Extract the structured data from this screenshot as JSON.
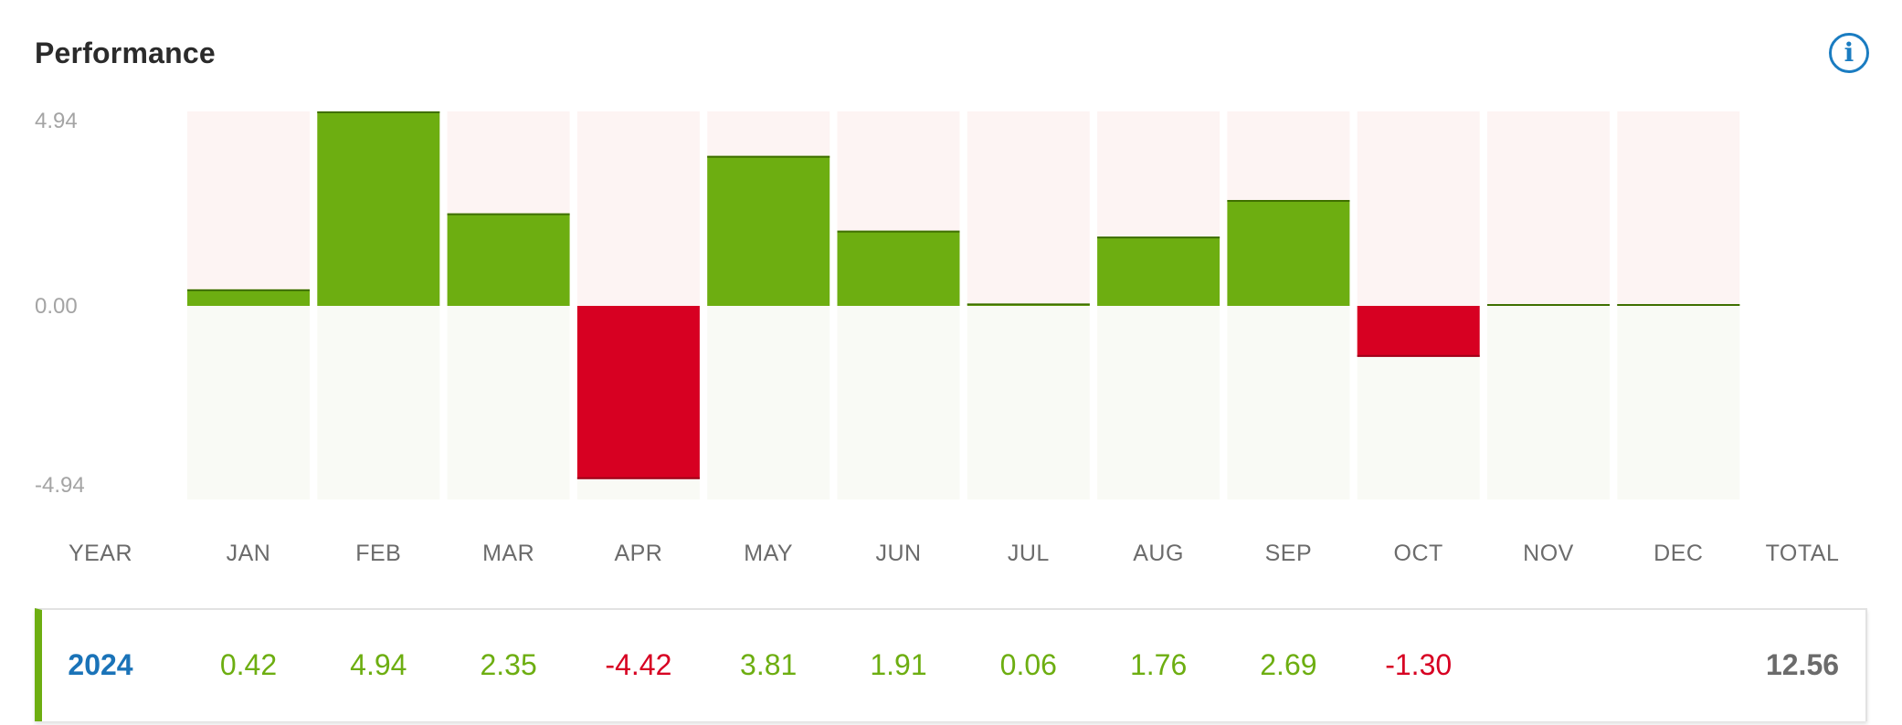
{
  "title": "Performance",
  "info_icon": "info-icon",
  "colors": {
    "positive": "#6dae11",
    "negative": "#d70022",
    "year_link": "#1a73b8",
    "upper_band": "#fdf4f3",
    "lower_band": "#f9faf5"
  },
  "chart_data": {
    "type": "bar",
    "categories": [
      "JAN",
      "FEB",
      "MAR",
      "APR",
      "MAY",
      "JUN",
      "JUL",
      "AUG",
      "SEP",
      "OCT",
      "NOV",
      "DEC"
    ],
    "values": [
      0.42,
      4.94,
      2.35,
      -4.42,
      3.81,
      1.91,
      0.06,
      1.76,
      2.69,
      -1.3,
      0,
      0
    ],
    "ylim": [
      -4.94,
      4.94
    ],
    "yticks": [
      "4.94",
      "0.00",
      "-4.94"
    ],
    "grid": false
  },
  "table": {
    "headers": [
      "YEAR",
      "JAN",
      "FEB",
      "MAR",
      "APR",
      "MAY",
      "JUN",
      "JUL",
      "AUG",
      "SEP",
      "OCT",
      "NOV",
      "DEC",
      "TOTAL"
    ],
    "row": {
      "year": "2024",
      "months": [
        "0.42",
        "4.94",
        "2.35",
        "-4.42",
        "3.81",
        "1.91",
        "0.06",
        "1.76",
        "2.69",
        "-1.30",
        "",
        ""
      ],
      "total": "12.56"
    }
  }
}
